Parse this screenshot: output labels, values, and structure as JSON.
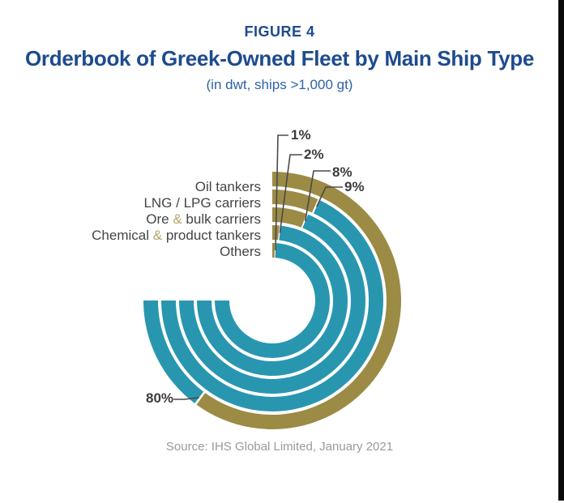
{
  "header": {
    "figure_label": "FIGURE 4",
    "title": "Orderbook of Greek-Owned Fleet by Main Ship Type",
    "subtitle": "(in dwt, ships >1,000 gt)"
  },
  "footer": {
    "source": "Source: IHS Global Limited, January 2021"
  },
  "colors": {
    "figure_label": "#1d4b8d",
    "title": "#1d4b8d",
    "subtitle": "#2e61a8",
    "value_arc_gold": "#9c8b45",
    "remainder_arc_teal": "#2996b0",
    "category_label": "#454545",
    "ampersand": "#b5a56c",
    "percent_label": "#3b3b3b",
    "leader_line": "#4a4a4a",
    "source_text": "#9a9a9a",
    "edge_strip": "#0a0a0a"
  },
  "chart_data": {
    "type": "pie",
    "variant": "concentric-radial-rings-gauge",
    "unit": "%",
    "gauge_span_degrees": 270,
    "direction": "clockwise from 12 o'clock",
    "encoding": "gold arc = category share, teal arc = remainder of 100%",
    "title": "Orderbook of Greek-Owned Fleet by Main Ship Type",
    "subtitle": "(in dwt, ships >1,000 gt)",
    "source": "Source: IHS Global Limited, January 2021",
    "categories": [
      "Oil tankers",
      "LNG / LPG carriers",
      "Ore & bulk carriers",
      "Chemical & product tankers",
      "Others"
    ],
    "values": [
      80,
      9,
      8,
      2,
      1
    ],
    "rings_outer_to_inner": [
      {
        "category": "Oil tankers",
        "value": 80,
        "callout": "80%"
      },
      {
        "category": "LNG / LPG carriers",
        "value": 9,
        "callout": "9%"
      },
      {
        "category": "Ore & bulk carriers",
        "value": 8,
        "callout": "8%"
      },
      {
        "category": "Chemical & product tankers",
        "value": 2,
        "callout": "2%"
      },
      {
        "category": "Others",
        "value": 1,
        "callout": "1%"
      }
    ]
  }
}
